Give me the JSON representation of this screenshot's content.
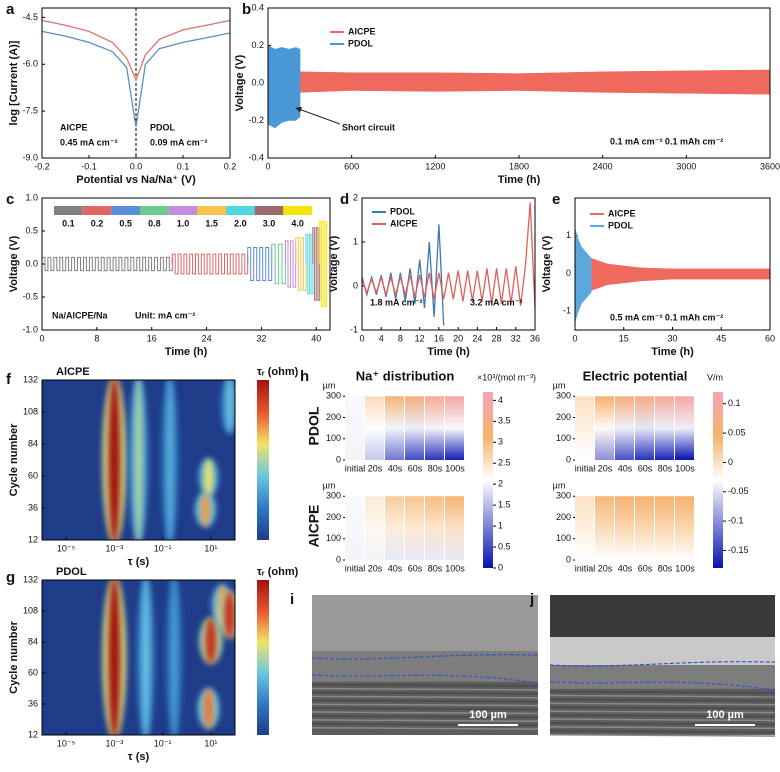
{
  "chart_data": [
    {
      "type": "line",
      "panel": "a",
      "xlabel": "Potential vs Na/Na⁺ (V)",
      "ylabel": "log [Current (A)]",
      "xlim": [
        -0.2,
        0.2
      ],
      "ylim": [
        -9,
        -4.2
      ],
      "xticks": [
        -0.2,
        -0.1,
        {
          "value": 0,
          "label": "0.0"
        },
        0.1,
        0.2
      ],
      "yticks": [
        -4.5,
        {
          "value": -6,
          "label": "-6.0"
        },
        -7.5,
        {
          "value": -9,
          "label": "-9.0"
        }
      ],
      "annotations": [
        "AlCPE",
        "0.45 mA cm⁻²",
        "PDOL",
        "0.09 mA cm⁻²"
      ],
      "series": [
        {
          "name": "AlCPE",
          "color": "#d9756b",
          "x": [
            -0.2,
            -0.15,
            -0.1,
            -0.05,
            -0.02,
            0,
            0.02,
            0.05,
            0.1,
            0.15,
            0.2
          ],
          "values": [
            -4.6,
            -4.75,
            -4.95,
            -5.3,
            -5.8,
            -6.5,
            -5.7,
            -5.2,
            -4.9,
            -4.75,
            -4.6
          ]
        },
        {
          "name": "PDOL",
          "color": "#5b8fc7",
          "x": [
            -0.2,
            -0.15,
            -0.1,
            -0.05,
            -0.02,
            0,
            0.02,
            0.05,
            0.1,
            0.15,
            0.2
          ],
          "values": [
            -4.95,
            -5.1,
            -5.3,
            -5.6,
            -6.1,
            -8.0,
            -6.0,
            -5.5,
            -5.3,
            -5.15,
            -5.0
          ]
        }
      ]
    },
    {
      "type": "band",
      "panel": "b",
      "xlabel": "Time (h)",
      "ylabel": "Voltage (V)",
      "xlim": [
        0,
        3600
      ],
      "ylim": [
        -0.4,
        0.4
      ],
      "xticks": [
        0,
        600,
        1200,
        1800,
        2400,
        3000,
        3600
      ],
      "yticks": [
        -0.4,
        -0.2,
        {
          "value": 0,
          "label": "0.0"
        },
        0.2,
        0.4
      ],
      "annotations": [
        "Short circuit",
        "0.1 mA cm⁻² 0.1 mAh cm⁻²"
      ],
      "series": [
        {
          "name": "AlCPE",
          "color": "#ee6a5e",
          "x": [
            230,
            600,
            1200,
            1800,
            2400,
            3000,
            3600
          ],
          "values": [
            0.06,
            0.055,
            0.055,
            0.05,
            0.06,
            0.065,
            0.07
          ],
          "lower": [
            -0.05,
            -0.04,
            -0.045,
            -0.04,
            -0.05,
            -0.055,
            -0.06
          ]
        },
        {
          "name": "PDOL",
          "color": "#4a98d6",
          "x": [
            0,
            50,
            100,
            150,
            200,
            230
          ],
          "values": [
            0.2,
            0.18,
            0.19,
            0.18,
            0.19,
            0.18
          ],
          "lower": [
            -0.22,
            -0.24,
            -0.21,
            -0.2,
            -0.2,
            -0.18
          ]
        }
      ]
    },
    {
      "type": "steps",
      "panel": "c",
      "xlabel": "Time (h)",
      "ylabel": "Voltage (V)",
      "xlim": [
        0,
        42
      ],
      "ylim": [
        -1,
        1
      ],
      "xticks": [
        0,
        8,
        16,
        24,
        32,
        40
      ],
      "yticks": [
        {
          "value": -1,
          "label": "-1.0"
        },
        -0.5,
        {
          "value": 0,
          "label": "0.0"
        },
        0.5,
        {
          "value": 1,
          "label": "1.0"
        }
      ],
      "annotations": [
        "Na/AlCPE/Na",
        "Unit: mA cm⁻²"
      ],
      "categories": [
        "0.1",
        "0.2",
        "0.5",
        "0.8",
        "1.0",
        "1.5",
        "2.0",
        "3.0",
        "4.0"
      ],
      "colors": [
        "#808080",
        "#e06666",
        "#5b8fd9",
        "#6ccb8f",
        "#c58be0",
        "#f5c24c",
        "#4fd8e0",
        "#9e6b6b",
        "#f7e600"
      ],
      "starts": [
        0,
        19,
        30,
        33.5,
        35.5,
        37,
        38.5,
        39.5,
        40.5
      ],
      "ends": [
        19,
        30,
        33.5,
        35.5,
        37,
        38.5,
        39.5,
        40.5,
        41.5
      ],
      "values": [
        0.1,
        0.15,
        0.25,
        0.3,
        0.35,
        0.4,
        0.45,
        0.55,
        0.65
      ]
    },
    {
      "type": "line",
      "panel": "d",
      "xlabel": "Time (h)",
      "ylabel": "Voltage (V)",
      "xlim": [
        0,
        36
      ],
      "ylim": [
        -1,
        2
      ],
      "xticks": [
        0,
        4,
        8,
        12,
        16,
        20,
        24,
        28,
        32,
        36
      ],
      "yticks": [
        -1,
        0,
        1,
        2
      ],
      "annotations": [
        "1.8 mA cm⁻²",
        "3.2 mA cm⁻²"
      ],
      "series": [
        {
          "name": "PDOL",
          "color": "#3f78b5",
          "x": [
            0,
            1,
            2,
            3,
            4,
            5,
            6,
            7,
            8,
            9,
            10,
            11,
            12,
            13,
            14,
            15,
            16,
            17
          ],
          "values": [
            0.2,
            -0.2,
            0.2,
            -0.2,
            0.25,
            -0.25,
            0.3,
            -0.3,
            0.3,
            -0.35,
            0.4,
            -0.4,
            0.6,
            -0.5,
            1.0,
            -0.7,
            1.4,
            -0.9
          ]
        },
        {
          "name": "AlCPE",
          "color": "#e0605a",
          "x": [
            0,
            1,
            2,
            3,
            4,
            5,
            6,
            7,
            8,
            9,
            10,
            11,
            12,
            13,
            14,
            15,
            16,
            17,
            18,
            19,
            20,
            21,
            22,
            23,
            24,
            25,
            26,
            27,
            28,
            29,
            30,
            31,
            32,
            33,
            34,
            35,
            36
          ],
          "values": [
            0.15,
            -0.15,
            0.15,
            -0.15,
            0.2,
            -0.2,
            0.2,
            -0.2,
            0.2,
            -0.2,
            0.25,
            -0.25,
            0.25,
            -0.25,
            0.3,
            -0.3,
            0.3,
            -0.3,
            0.3,
            -0.3,
            0.35,
            -0.35,
            0.35,
            -0.35,
            0.35,
            -0.35,
            0.4,
            -0.4,
            0.4,
            -0.4,
            0.4,
            -0.4,
            0.45,
            -0.45,
            0.45,
            1.9,
            -0.5
          ]
        }
      ]
    },
    {
      "type": "band",
      "panel": "e",
      "xlabel": "Time (h)",
      "ylabel": "Voltage (V)",
      "xlim": [
        0,
        60
      ],
      "ylim": [
        -1.5,
        2
      ],
      "xticks": [
        0,
        15,
        30,
        45,
        60
      ],
      "yticks": [
        -1,
        0,
        1
      ],
      "annotations": [
        "0.5 mA cm⁻² 0.1 mAh cm⁻²"
      ],
      "series": [
        {
          "name": "AlCPE",
          "color": "#ee6a5e",
          "x": [
            0,
            5,
            10,
            20,
            30,
            45,
            60
          ],
          "values": [
            0.6,
            0.4,
            0.25,
            0.15,
            0.12,
            0.12,
            0.12
          ],
          "lower": [
            -0.7,
            -0.45,
            -0.3,
            -0.2,
            -0.15,
            -0.15,
            -0.15
          ]
        },
        {
          "name": "PDOL",
          "color": "#5aa8dc",
          "x": [
            0,
            1,
            2,
            3,
            4,
            5
          ],
          "values": [
            1.2,
            0.9,
            0.7,
            0.6,
            0.5,
            0.4
          ],
          "lower": [
            -1.3,
            -1.0,
            -0.8,
            -0.7,
            -0.6,
            -0.5
          ]
        }
      ]
    },
    {
      "type": "drt",
      "panel": "f",
      "title": "AlCPE",
      "xlabel": "τ (s)",
      "ylabel": "Cycle number",
      "colorbar_label": "τᵣ (ohm)",
      "xscale": "log",
      "xlim": [
        1e-06,
        100
      ],
      "ylim": [
        12,
        132
      ],
      "xticks": [
        {
          "value": 1e-05,
          "label": "10⁻⁵"
        },
        {
          "value": 0.001,
          "label": "10⁻³"
        },
        {
          "value": 0.1,
          "label": "10⁻¹"
        },
        {
          "value": 10,
          "label": "10¹"
        }
      ],
      "yticks": [
        12,
        36,
        60,
        84,
        108,
        132
      ],
      "x": [
        0.001,
        0.01,
        0.2,
        6,
        8,
        60
      ],
      "y_from": [
        12,
        12,
        12,
        25,
        48,
        95
      ],
      "y_to": [
        132,
        132,
        132,
        45,
        70,
        132
      ],
      "values": [
        1,
        0.5,
        0.35,
        0.7,
        0.6,
        0.4
      ]
    },
    {
      "type": "drt",
      "panel": "g",
      "title": "PDOL",
      "xlabel": "τ (s)",
      "ylabel": "Cycle number",
      "colorbar_label": "τᵣ (ohm)",
      "xscale": "log",
      "xlim": [
        1e-06,
        100
      ],
      "ylim": [
        12,
        132
      ],
      "xticks": [
        {
          "value": 1e-05,
          "label": "10⁻⁵"
        },
        {
          "value": 0.001,
          "label": "10⁻³"
        },
        {
          "value": 0.1,
          "label": "10⁻¹"
        },
        {
          "value": 10,
          "label": "10¹"
        }
      ],
      "yticks": [
        12,
        36,
        60,
        84,
        108,
        132
      ],
      "x": [
        0.001,
        0.02,
        0.3,
        8,
        10,
        30,
        60
      ],
      "y_from": [
        12,
        12,
        12,
        20,
        70,
        100,
        90
      ],
      "y_to": [
        132,
        132,
        132,
        45,
        100,
        125,
        120
      ],
      "values": [
        1,
        0.4,
        0.3,
        0.75,
        0.9,
        0.7,
        0.9
      ]
    },
    {
      "type": "simulation",
      "panel": "h",
      "ylabel": "µm",
      "ylim": [
        0,
        320
      ],
      "yticks": [
        0,
        100,
        200,
        300
      ],
      "rows": [
        "PDOL",
        "AlCPE"
      ],
      "columns": [
        "initial",
        "20s",
        "40s",
        "60s",
        "80s",
        "100s"
      ],
      "maps": [
        {
          "title": "Na⁺ distribution",
          "unit": "×10³/(mol m⁻³)",
          "lim": [
            0,
            4.2
          ],
          "ticks": [
            0,
            0.5,
            1,
            1.5,
            2,
            2.5,
            3,
            3.5,
            4
          ],
          "top": [
            [
              2.05,
              2.6,
              3.1,
              3.4,
              3.7,
              4.0
            ],
            [
              2.05,
              2.4,
              2.8,
              2.9,
              3.0,
              3.1
            ]
          ],
          "bottom": [
            [
              2.0,
              1.6,
              0.9,
              0.5,
              0.3,
              0.1
            ],
            [
              2.0,
              2.0,
              1.9,
              1.9,
              1.9,
              1.9
            ]
          ]
        },
        {
          "title": "Electric potential",
          "unit": "V/m",
          "lim": [
            -0.18,
            0.12
          ],
          "ticks": [
            -0.15,
            -0.1,
            -0.05,
            0,
            0.05,
            0.1
          ],
          "top": [
            [
              0.0,
              0.05,
              0.06,
              0.07,
              0.09,
              0.1
            ],
            [
              0.0,
              0.04,
              0.05,
              0.05,
              0.05,
              0.05
            ]
          ],
          "bottom": [
            [
              -0.03,
              -0.1,
              -0.14,
              -0.16,
              -0.17,
              -0.18
            ],
            [
              -0.03,
              -0.03,
              -0.03,
              -0.03,
              -0.03,
              -0.03
            ]
          ]
        }
      ]
    },
    {
      "type": "image",
      "panel": "i",
      "scale_label": "100 µm"
    },
    {
      "type": "image",
      "panel": "j",
      "scale_label": "100 µm"
    }
  ]
}
